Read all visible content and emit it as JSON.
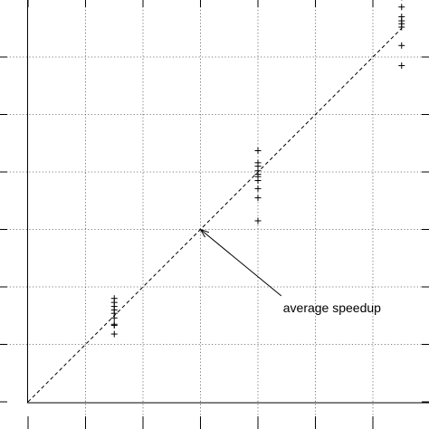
{
  "chart_data": {
    "type": "scatter",
    "title": "",
    "xlabel": "",
    "ylabel": "",
    "xlim": [
      0,
      7
    ],
    "ylim": [
      0,
      7
    ],
    "grid": true,
    "x_ticks": [
      0,
      1,
      2,
      3,
      4,
      5,
      6,
      7
    ],
    "y_ticks": [
      0,
      1,
      2,
      3,
      4,
      5,
      6,
      7
    ],
    "tick_labels_visible": false,
    "marker": "+",
    "series": [
      {
        "x": [
          1.5,
          1.5,
          1.5,
          1.5,
          1.5,
          1.5,
          1.5,
          1.5,
          1.5,
          4.0,
          4.0,
          4.0,
          4.0,
          4.0,
          4.0,
          4.0,
          4.0,
          4.0,
          4.0,
          6.5,
          6.5,
          6.5,
          6.5,
          6.5,
          6.5,
          6.5,
          6.5
        ],
        "y": [
          1.8,
          1.73,
          1.66,
          1.6,
          1.54,
          1.46,
          1.35,
          1.33,
          1.18,
          4.37,
          4.16,
          4.1,
          4.02,
          3.96,
          3.92,
          3.85,
          3.71,
          3.55,
          3.15,
          7.04,
          6.87,
          6.7,
          6.63,
          6.58,
          6.52,
          6.2,
          5.85
        ]
      }
    ],
    "reference_line": {
      "style": "dashed",
      "x": [
        0,
        6.5
      ],
      "y": [
        0,
        6.5
      ]
    },
    "annotation": {
      "text": "average speedup",
      "arrow_to": [
        3,
        3
      ],
      "text_at": [
        4.5,
        1.75
      ]
    }
  }
}
